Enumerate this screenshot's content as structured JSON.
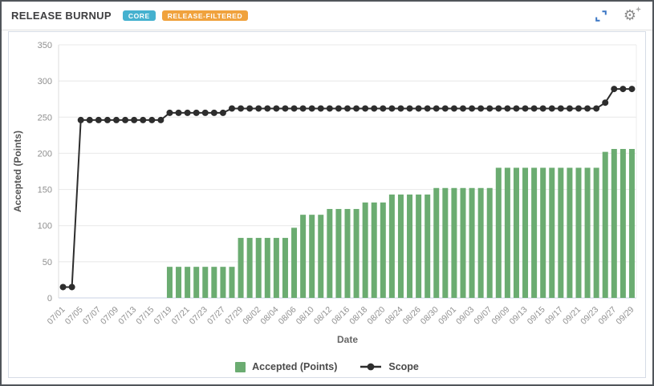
{
  "panel": {
    "title": "RELEASE BURNUP",
    "badges": [
      {
        "label": "CORE",
        "color": "#45b1cf"
      },
      {
        "label": "RELEASE-FILTERED",
        "color": "#f0a23d"
      }
    ],
    "icons": {
      "expand": "expand-arrows",
      "settings": "gear-with-sparkle"
    }
  },
  "chart_data": {
    "type": "bar-line-combo",
    "xlabel": "Date",
    "ylabel": "Accepted (Points)",
    "ylim": [
      0,
      350
    ],
    "yticks": [
      0,
      50,
      100,
      150,
      200,
      250,
      300,
      350
    ],
    "grid": "horizontal",
    "legend_position": "bottom",
    "xtick_label_every": 2,
    "categories": [
      "07/01",
      "07/02",
      "07/05",
      "07/06",
      "07/07",
      "07/08",
      "07/09",
      "07/12",
      "07/13",
      "07/14",
      "07/15",
      "07/16",
      "07/19",
      "07/20",
      "07/21",
      "07/22",
      "07/23",
      "07/26",
      "07/27",
      "07/28",
      "07/29",
      "07/30",
      "08/02",
      "08/03",
      "08/04",
      "08/05",
      "08/06",
      "08/09",
      "08/10",
      "08/11",
      "08/12",
      "08/13",
      "08/16",
      "08/17",
      "08/18",
      "08/19",
      "08/20",
      "08/23",
      "08/24",
      "08/25",
      "08/26",
      "08/27",
      "08/30",
      "08/31",
      "09/01",
      "09/02",
      "09/03",
      "09/06",
      "09/07",
      "09/08",
      "09/09",
      "09/10",
      "09/13",
      "09/14",
      "09/15",
      "09/16",
      "09/17",
      "09/20",
      "09/21",
      "09/22",
      "09/23",
      "09/24",
      "09/27",
      "09/28",
      "09/29"
    ],
    "series": [
      {
        "name": "Accepted (Points)",
        "type": "bar",
        "color": "#6bac71",
        "values": [
          null,
          null,
          null,
          null,
          null,
          null,
          null,
          null,
          null,
          null,
          null,
          null,
          43,
          43,
          43,
          43,
          43,
          43,
          43,
          43,
          83,
          83,
          83,
          83,
          83,
          83,
          97,
          115,
          115,
          115,
          123,
          123,
          123,
          123,
          132,
          132,
          132,
          143,
          143,
          143,
          143,
          143,
          152,
          152,
          152,
          152,
          152,
          152,
          152,
          180,
          180,
          180,
          180,
          180,
          180,
          180,
          180,
          180,
          180,
          180,
          180,
          202,
          206,
          206,
          206
        ]
      },
      {
        "name": "Scope",
        "type": "line",
        "color": "#2d2d2d",
        "marker": "circle",
        "values": [
          15,
          15,
          246,
          246,
          246,
          246,
          246,
          246,
          246,
          246,
          246,
          246,
          256,
          256,
          256,
          256,
          256,
          256,
          256,
          262,
          262,
          262,
          262,
          262,
          262,
          262,
          262,
          262,
          262,
          262,
          262,
          262,
          262,
          262,
          262,
          262,
          262,
          262,
          262,
          262,
          262,
          262,
          262,
          262,
          262,
          262,
          262,
          262,
          262,
          262,
          262,
          262,
          262,
          262,
          262,
          262,
          262,
          262,
          262,
          262,
          262,
          270,
          289,
          289,
          289
        ]
      }
    ]
  }
}
